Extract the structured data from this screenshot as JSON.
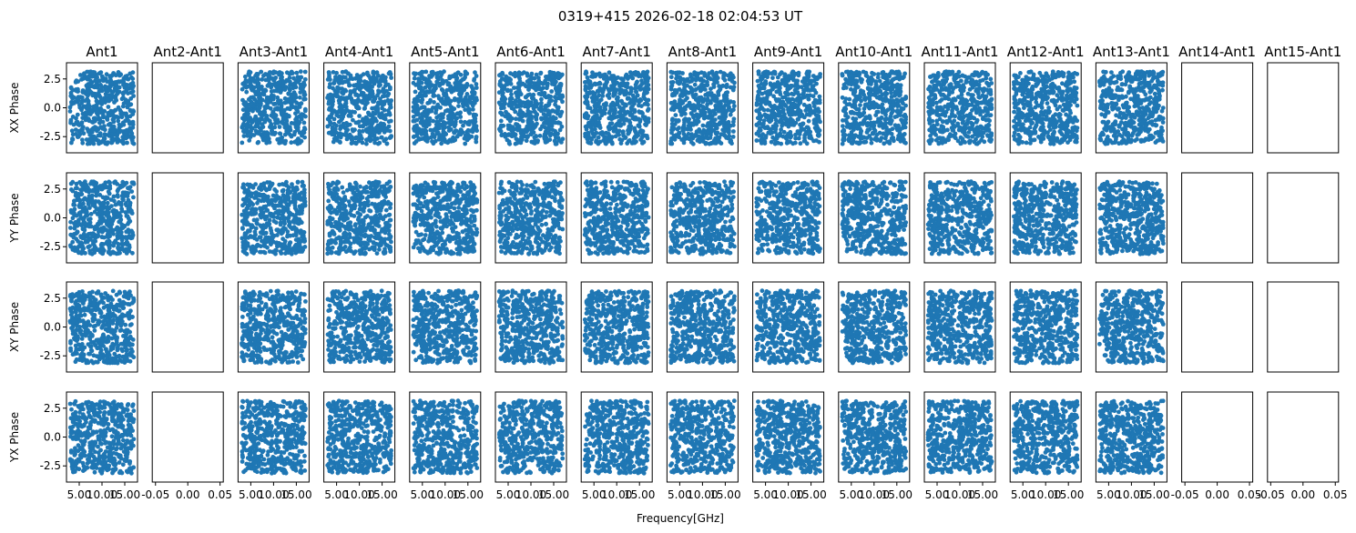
{
  "chart_data": {
    "type": "scatter",
    "title": "0319+415 2026-02-18 02:04:53 UT",
    "xlabel": "Frequency[GHz]",
    "columns": [
      "Ant1",
      "Ant2-Ant1",
      "Ant3-Ant1",
      "Ant4-Ant1",
      "Ant5-Ant1",
      "Ant6-Ant1",
      "Ant7-Ant1",
      "Ant8-Ant1",
      "Ant9-Ant1",
      "Ant10-Ant1",
      "Ant11-Ant1",
      "Ant12-Ant1",
      "Ant13-Ant1",
      "Ant14-Ant1",
      "Ant15-Ant1"
    ],
    "rows": [
      "XX Phase",
      "YY Phase",
      "XY Phase",
      "YX Phase"
    ],
    "empty_columns": [
      1,
      13,
      14
    ],
    "xlim": [
      2.2,
      17.8
    ],
    "ylim": [
      -3.9,
      3.9
    ],
    "x_ticks": [
      "5.00",
      "10.00",
      "15.00"
    ],
    "x_ticks_empty": [
      "-0.05",
      "0.00",
      "0.05"
    ],
    "y_ticks": [
      "-2.5",
      "0.0",
      "2.5"
    ],
    "x_range_data": [
      3.0,
      17.0
    ],
    "y_range_data": [
      -3.14,
      3.14
    ],
    "points_per_panel": 500,
    "series_color": "#1f77b4"
  }
}
